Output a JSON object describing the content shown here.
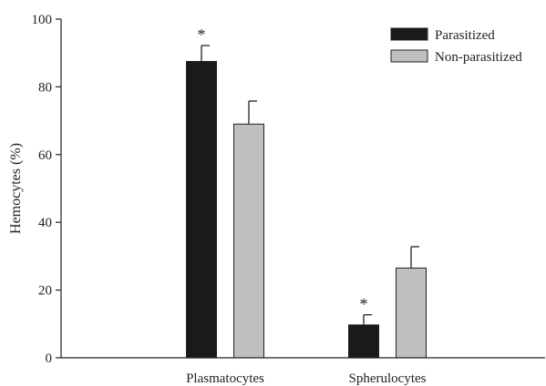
{
  "chart_data": {
    "type": "bar",
    "title": "",
    "xlabel": "",
    "ylabel": "Hemocytes (%)",
    "ylim": [
      0,
      100
    ],
    "yticks": [
      0,
      20,
      40,
      60,
      80,
      100
    ],
    "grid": false,
    "legend_position": "top-right",
    "categories": [
      "Plasmatocytes",
      "Spherulocytes"
    ],
    "series": [
      {
        "name": "Parasitized",
        "color": "#1a1a1a",
        "values": [
          87.5,
          9.7
        ],
        "error": [
          4.7,
          3.0
        ],
        "significance": [
          "*",
          "*"
        ]
      },
      {
        "name": "Non-parasitized",
        "color": "#bfbfbf",
        "values": [
          69.0,
          26.5
        ],
        "error": [
          6.8,
          6.3
        ],
        "significance": [
          "",
          ""
        ]
      }
    ]
  }
}
